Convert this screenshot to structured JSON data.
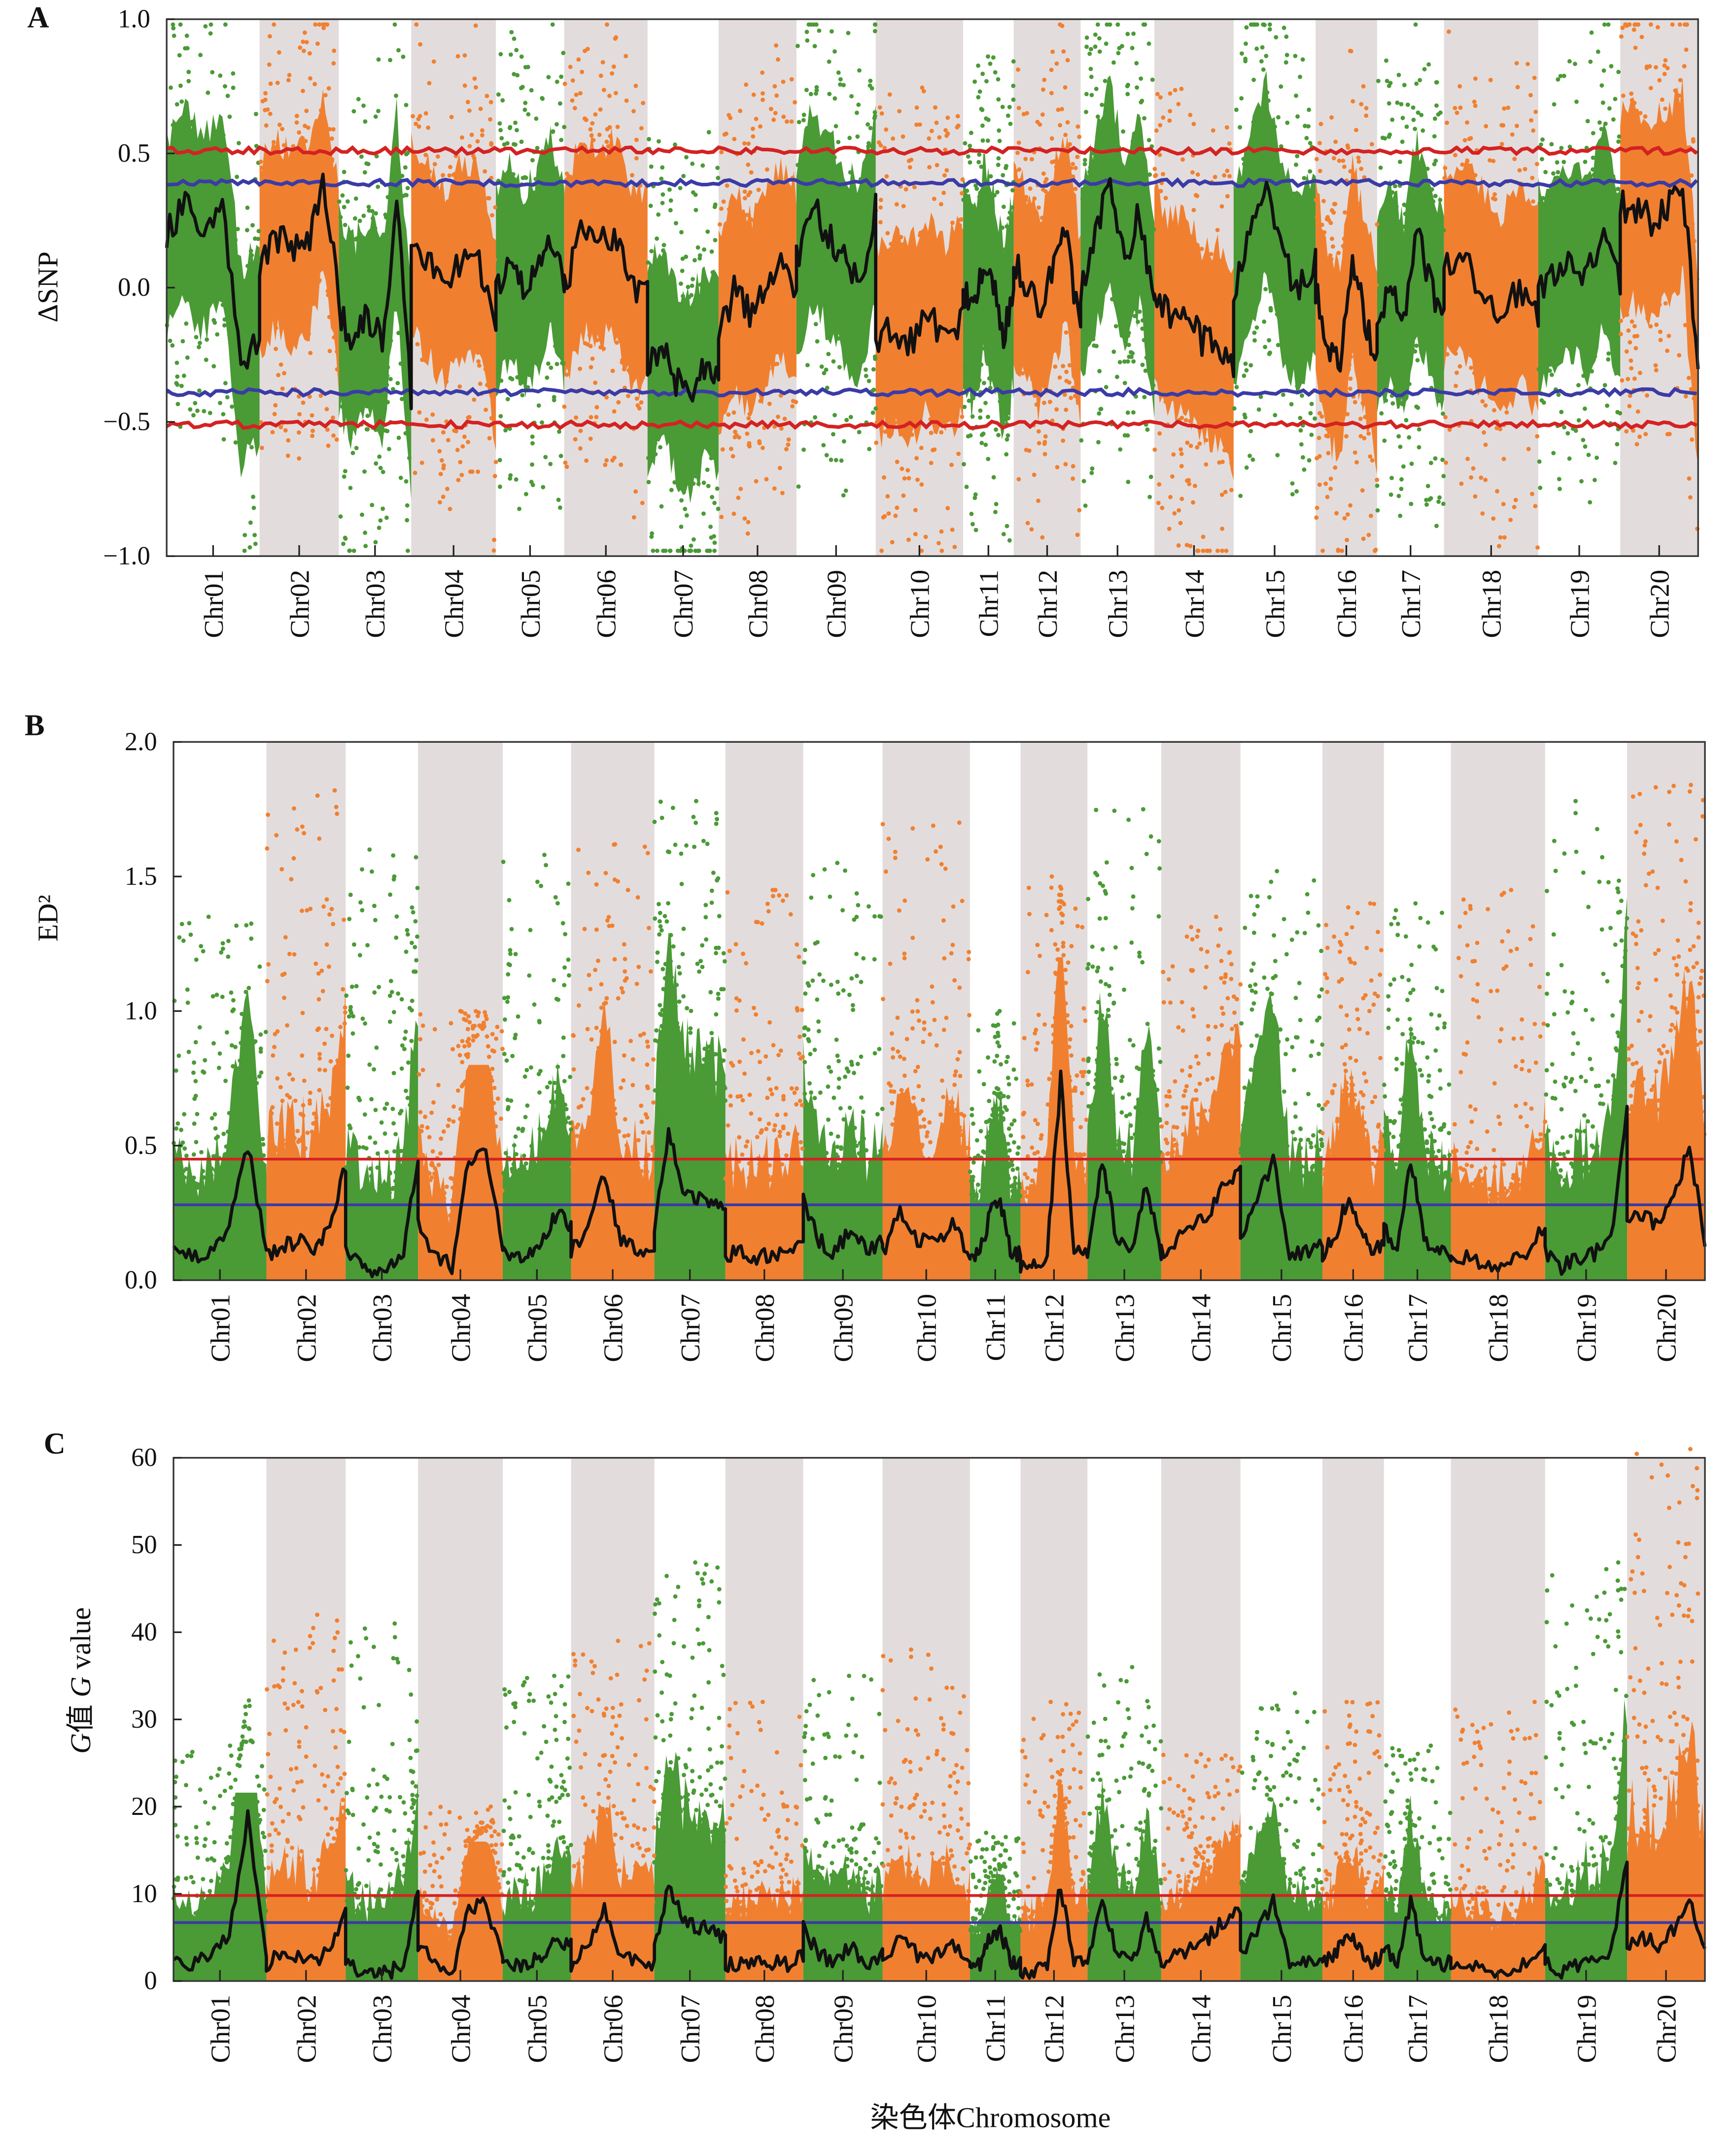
{
  "chart_data": [
    {
      "type": "scatter",
      "panel_label": "A",
      "ylabel": "ΔSNP",
      "xlabel": "",
      "ylim": [
        -1.0,
        1.0
      ],
      "yticks": [
        "1.0",
        "0.5",
        "0.0",
        "−0.5",
        "−1.0"
      ],
      "ytick_values": [
        1.0,
        0.5,
        0.0,
        -0.5,
        -1.0
      ],
      "grid": false,
      "categories": [
        "Chr01",
        "Chr02",
        "Chr03",
        "Chr04",
        "Chr05",
        "Chr06",
        "Chr07",
        "Chr08",
        "Chr09",
        "Chr10",
        "Chr11",
        "Chr12",
        "Chr13",
        "Chr14",
        "Chr15",
        "Chr16",
        "Chr17",
        "Chr18",
        "Chr19",
        "Chr20"
      ],
      "thresholds": {
        "red": [
          0.51,
          -0.51
        ],
        "blue": [
          0.39,
          -0.39
        ]
      },
      "smoothed_line": [
        [
          0.2,
          0.3,
          0.2,
          0.3,
          -0.3,
          -0.2
        ],
        [
          0.1,
          0.2,
          0.15,
          0.15,
          0.4,
          0.0
        ],
        [
          -0.1,
          -0.2,
          -0.1,
          -0.2,
          0.3,
          -0.4
        ],
        [
          0.2,
          0.1,
          0.0,
          0.1,
          0.1,
          -0.2
        ],
        [
          0.0,
          0.1,
          0.0,
          0.05,
          0.2,
          0.0
        ],
        [
          0.0,
          0.2,
          0.15,
          0.2,
          0.0,
          0.0
        ],
        [
          -0.3,
          -0.2,
          -0.35,
          -0.4,
          -0.3,
          -0.3
        ],
        [
          -0.2,
          0.0,
          -0.1,
          0.0,
          0.1,
          0.0
        ],
        [
          0.1,
          0.3,
          0.2,
          0.1,
          0.0,
          0.3
        ],
        [
          -0.2,
          -0.15,
          -0.2,
          -0.1,
          -0.2,
          -0.1
        ],
        [
          0.0,
          -0.1,
          0.1,
          0.0,
          -0.2,
          0.0
        ],
        [
          0.1,
          0.0,
          -0.1,
          0.1,
          0.2,
          -0.2
        ],
        [
          0.0,
          0.2,
          0.4,
          0.1,
          0.3,
          -0.1
        ],
        [
          0.0,
          -0.1,
          -0.1,
          -0.2,
          -0.2,
          -0.3
        ],
        [
          0.0,
          0.2,
          0.4,
          0.1,
          0.0,
          0.1
        ],
        [
          0.0,
          -0.2,
          -0.3,
          0.1,
          -0.1,
          -0.3
        ],
        [
          -0.1,
          0.0,
          -0.1,
          0.2,
          0.0,
          -0.1
        ],
        [
          0.1,
          0.1,
          0.0,
          -0.1,
          0.0,
          -0.1
        ],
        [
          0.0,
          0.05,
          0.1,
          0.05,
          0.2,
          0.0
        ],
        [
          0.3,
          0.3,
          0.25,
          0.3,
          0.4,
          -0.3
        ]
      ],
      "point_extremes": [
        0.75,
        0.95,
        0.85,
        0.6,
        0.55,
        0.85,
        -0.95,
        0.75,
        0.88,
        -0.85,
        0.7,
        0.6,
        0.9,
        -0.8,
        0.85,
        0.75,
        -0.85,
        0.75,
        0.95,
        0.97
      ]
    },
    {
      "type": "scatter",
      "panel_label": "B",
      "ylabel": "ED²",
      "xlabel": "",
      "ylim": [
        0.0,
        2.0
      ],
      "yticks": [
        "2.0",
        "1.5",
        "1.0",
        "0.5",
        "0.0"
      ],
      "ytick_values": [
        2.0,
        1.5,
        1.0,
        0.5,
        0.0
      ],
      "grid": false,
      "categories": [
        "Chr01",
        "Chr02",
        "Chr03",
        "Chr04",
        "Chr05",
        "Chr06",
        "Chr07",
        "Chr08",
        "Chr09",
        "Chr10",
        "Chr11",
        "Chr12",
        "Chr13",
        "Chr14",
        "Chr15",
        "Chr16",
        "Chr17",
        "Chr18",
        "Chr19",
        "Chr20"
      ],
      "thresholds": {
        "red": [
          0.45
        ],
        "blue": [
          0.28
        ]
      },
      "smoothed_line": [
        [
          0.15,
          0.08,
          0.1,
          0.2,
          0.5,
          0.1
        ],
        [
          0.1,
          0.12,
          0.15,
          0.1,
          0.2,
          0.42
        ],
        [
          0.1,
          0.05,
          0.03,
          0.05,
          0.1,
          0.45
        ],
        [
          0.2,
          0.1,
          0.05,
          0.45,
          0.5,
          0.1
        ],
        [
          0.1,
          0.08,
          0.1,
          0.15,
          0.25,
          0.2
        ],
        [
          0.1,
          0.2,
          0.4,
          0.15,
          0.1,
          0.1
        ],
        [
          0.2,
          0.55,
          0.35,
          0.3,
          0.3,
          0.25
        ],
        [
          0.1,
          0.1,
          0.08,
          0.1,
          0.1,
          0.15
        ],
        [
          0.3,
          0.15,
          0.1,
          0.2,
          0.1,
          0.15
        ],
        [
          0.1,
          0.25,
          0.15,
          0.15,
          0.2,
          0.1
        ],
        [
          0.1,
          0.1,
          0.25,
          0.3,
          0.1,
          0.1
        ],
        [
          0.05,
          0.05,
          0.1,
          0.75,
          0.1,
          0.1
        ],
        [
          0.1,
          0.45,
          0.15,
          0.1,
          0.35,
          0.1
        ],
        [
          0.1,
          0.15,
          0.2,
          0.25,
          0.35,
          0.4
        ],
        [
          0.15,
          0.3,
          0.45,
          0.1,
          0.1,
          0.15
        ],
        [
          0.1,
          0.15,
          0.3,
          0.2,
          0.1,
          0.15
        ],
        [
          0.2,
          0.1,
          0.45,
          0.15,
          0.1,
          0.1
        ],
        [
          0.1,
          0.08,
          0.05,
          0.05,
          0.1,
          0.2
        ],
        [
          0.1,
          0.05,
          0.08,
          0.1,
          0.15,
          0.65
        ],
        [
          0.2,
          0.25,
          0.2,
          0.3,
          0.5,
          0.15
        ]
      ],
      "peak_values": [
        1.35,
        1.82,
        1.6,
        1.0,
        1.58,
        1.62,
        1.78,
        1.45,
        1.55,
        1.7,
        1.0,
        1.5,
        1.75,
        1.35,
        1.52,
        1.4,
        1.4,
        1.45,
        1.78,
        1.84
      ]
    },
    {
      "type": "scatter",
      "panel_label": "C",
      "ylabel": "G值 G value",
      "xlabel": "染色体Chromosome",
      "ylim": [
        0,
        60
      ],
      "yticks": [
        "60",
        "50",
        "40",
        "30",
        "20",
        "10",
        "0"
      ],
      "ytick_values": [
        60,
        50,
        40,
        30,
        20,
        10,
        0
      ],
      "grid": false,
      "categories": [
        "Chr01",
        "Chr02",
        "Chr03",
        "Chr04",
        "Chr05",
        "Chr06",
        "Chr07",
        "Chr08",
        "Chr09",
        "Chr10",
        "Chr11",
        "Chr12",
        "Chr13",
        "Chr14",
        "Chr15",
        "Chr16",
        "Chr17",
        "Chr18",
        "Chr19",
        "Chr20"
      ],
      "thresholds": {
        "red": [
          9.8
        ],
        "blue": [
          6.7
        ]
      },
      "smoothed_line": [
        [
          3,
          2,
          3,
          5,
          19,
          2
        ],
        [
          2,
          3,
          3,
          2,
          4,
          8
        ],
        [
          2,
          1,
          1,
          1,
          2,
          10
        ],
        [
          4,
          2,
          1,
          8,
          9,
          2
        ],
        [
          2,
          2,
          2,
          3,
          5,
          4
        ],
        [
          2,
          4,
          8,
          3,
          2,
          2
        ],
        [
          4,
          11,
          7,
          6,
          6,
          5
        ],
        [
          2,
          2,
          2,
          2,
          2,
          3
        ],
        [
          6,
          3,
          2,
          4,
          2,
          3
        ],
        [
          2,
          5,
          3,
          3,
          4,
          2
        ],
        [
          2,
          2,
          5,
          6,
          2,
          2
        ],
        [
          1,
          1,
          2,
          11,
          2,
          2
        ],
        [
          2,
          9,
          3,
          2,
          7,
          2
        ],
        [
          2,
          3,
          4,
          5,
          7,
          8
        ],
        [
          3,
          6,
          9,
          2,
          2,
          3
        ],
        [
          2,
          3,
          6,
          4,
          2,
          3
        ],
        [
          4,
          2,
          9,
          3,
          2,
          2
        ],
        [
          2,
          2,
          1,
          1,
          2,
          4
        ],
        [
          2,
          1,
          2,
          2,
          3,
          14
        ],
        [
          4,
          5,
          4,
          6,
          10,
          3
        ]
      ],
      "peak_values": [
        27,
        42,
        41,
        20,
        35,
        39,
        48,
        32,
        35,
        38,
        17,
        32,
        36,
        26,
        33,
        32,
        27,
        32,
        48,
        61
      ]
    }
  ],
  "colors": {
    "odd_chromosome": "#4a9a36",
    "even_chromosome": "#f08030",
    "shading": "#e3dcdc",
    "threshold_red": "#d42222",
    "threshold_blue": "#3b3ba6",
    "smoothed_line": "#111111"
  }
}
